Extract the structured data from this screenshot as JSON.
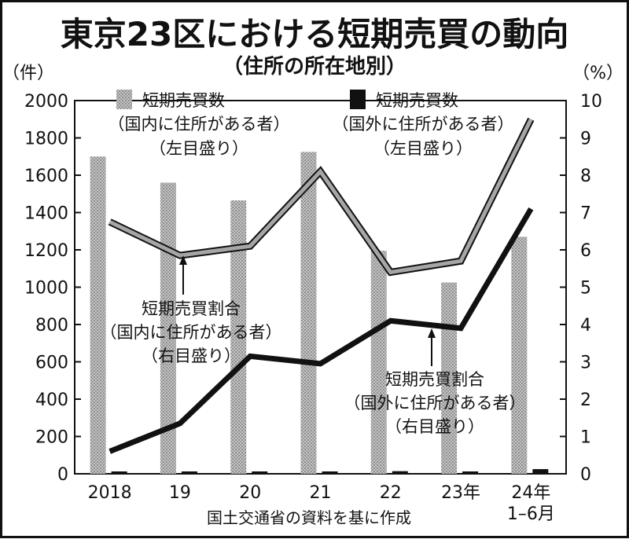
{
  "chart_data": {
    "type": "bar+line",
    "title": "東京23区における短期売買の動向",
    "subtitle": "（住所の所在地別）",
    "left_axis_unit": "（件）",
    "right_axis_unit": "（%）",
    "categories": [
      "2018",
      "19",
      "20",
      "21",
      "22",
      "23年",
      "24年|1–6月"
    ],
    "left_ylim": [
      0,
      2000
    ],
    "left_ticks": [
      0,
      200,
      400,
      600,
      800,
      1000,
      1200,
      1400,
      1600,
      1800,
      2000
    ],
    "right_ylim": [
      0,
      10
    ],
    "right_ticks": [
      0,
      1,
      2,
      3,
      4,
      5,
      6,
      7,
      8,
      9,
      10
    ],
    "bars": [
      {
        "name": "短期売買数（国内に住所がある者）（左目盛り）",
        "color": "#b8b8b8",
        "values": [
          1700,
          1560,
          1465,
          1725,
          1195,
          1025,
          1270
        ]
      },
      {
        "name": "短期売買数（国外に住所がある者）（左目盛り）",
        "color": "#111111",
        "values": [
          5,
          6,
          8,
          10,
          14,
          8,
          25
        ]
      }
    ],
    "lines": [
      {
        "name": "短期売買割合（国内に住所がある者）（右目盛り）",
        "color": "#a6a6a6",
        "values": [
          6.75,
          5.85,
          6.1,
          8.1,
          5.4,
          5.7,
          9.5
        ]
      },
      {
        "name": "短期売買割合（国外に住所がある者）（右目盛り）",
        "color": "#111111",
        "values": [
          0.6,
          1.35,
          3.15,
          2.95,
          4.1,
          3.9,
          7.1
        ]
      }
    ],
    "legend": {
      "domestic_bar": [
        "短期売買数",
        "（国内に住所がある者）",
        "（左目盛り）"
      ],
      "foreign_bar": [
        "短期売買数",
        "（国外に住所がある者）",
        "（左目盛り）"
      ]
    },
    "annotations": {
      "domestic_line": [
        "短期売買割合",
        "（国内に住所がある者）",
        "（右目盛り）"
      ],
      "foreign_line": [
        "短期売買割合",
        "（国外に住所がある者）",
        "（右目盛り）"
      ]
    },
    "source": "国土交通省の資料を基に作成"
  }
}
